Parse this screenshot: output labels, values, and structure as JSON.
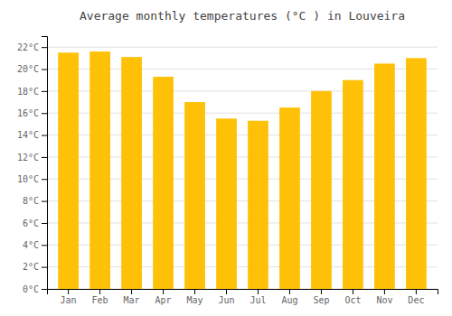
{
  "chart_data": {
    "type": "bar",
    "title": "Average monthly temperatures (°C ) in Louveira",
    "categories": [
      "Jan",
      "Feb",
      "Mar",
      "Apr",
      "May",
      "Jun",
      "Jul",
      "Aug",
      "Sep",
      "Oct",
      "Nov",
      "Dec"
    ],
    "values": [
      21.5,
      21.6,
      21.1,
      19.3,
      17.0,
      15.5,
      15.3,
      16.5,
      18.0,
      19.0,
      20.5,
      21.0
    ],
    "color": "#FFC107",
    "ylim": [
      0,
      23
    ],
    "yticks": [
      {
        "value": 0,
        "label": "0°C"
      },
      {
        "value": 2,
        "label": "2°C"
      },
      {
        "value": 4,
        "label": "4°C"
      },
      {
        "value": 6,
        "label": "6°C"
      },
      {
        "value": 8,
        "label": "8°C"
      },
      {
        "value": 10,
        "label": "10°C"
      },
      {
        "value": 12,
        "label": "12°C"
      },
      {
        "value": 14,
        "label": "14°C"
      },
      {
        "value": 16,
        "label": "16°C"
      },
      {
        "value": 18,
        "label": "18°C"
      },
      {
        "value": 20,
        "label": "20°C"
      },
      {
        "value": 22,
        "label": "22°C"
      }
    ],
    "grid": true
  }
}
